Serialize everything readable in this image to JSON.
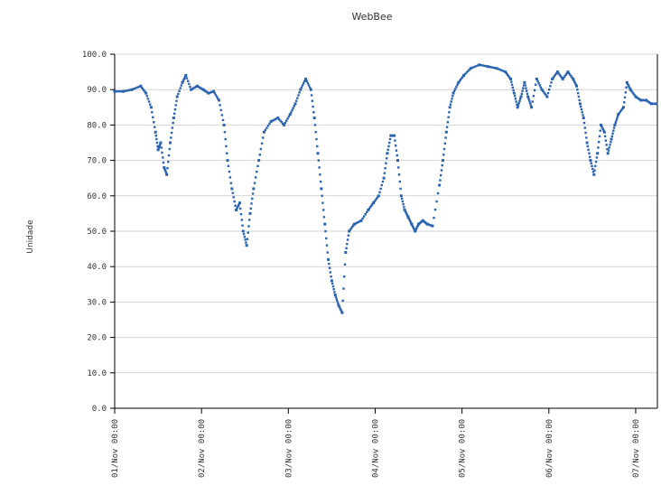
{
  "chart_data": {
    "type": "scatter",
    "title": "WebBee",
    "ylabel": "Unidade",
    "xlabel": "",
    "ylim": [
      0,
      100
    ],
    "yticks": [
      "0.0",
      "10.0",
      "20.0",
      "30.0",
      "40.0",
      "50.0",
      "60.0",
      "70.0",
      "80.0",
      "90.0",
      "100.0"
    ],
    "yticks_values": [
      0,
      10,
      20,
      30,
      40,
      50,
      60,
      70,
      80,
      90,
      100
    ],
    "xlim": [
      0,
      6.25
    ],
    "x_unit": "days from 01/Nov 00:00",
    "xticks": [
      "01/Nov 00:00",
      "02/Nov 00:00",
      "03/Nov 00:00",
      "04/Nov 00:00",
      "05/Nov 00:00",
      "06/Nov 00:00",
      "07/Nov 00:00"
    ],
    "xticks_values": [
      0,
      1,
      2,
      3,
      4,
      5,
      6
    ],
    "grid": true,
    "marker_color": "#2a63b0",
    "grid_color": "#d4d4d4",
    "series": [
      {
        "points": [
          [
            0.0,
            89.5
          ],
          [
            0.1,
            89.5
          ],
          [
            0.2,
            90.0
          ],
          [
            0.3,
            91.0
          ],
          [
            0.36,
            89.0
          ],
          [
            0.42,
            85.0
          ],
          [
            0.47,
            78.0
          ],
          [
            0.5,
            73.0
          ],
          [
            0.53,
            75.0
          ],
          [
            0.57,
            68.0
          ],
          [
            0.6,
            66.0
          ],
          [
            0.64,
            75.0
          ],
          [
            0.68,
            82.0
          ],
          [
            0.72,
            88.0
          ],
          [
            0.78,
            92.0
          ],
          [
            0.82,
            94.0
          ],
          [
            0.88,
            90.0
          ],
          [
            0.95,
            91.0
          ],
          [
            1.02,
            90.0
          ],
          [
            1.08,
            89.0
          ],
          [
            1.14,
            89.5
          ],
          [
            1.2,
            87.0
          ],
          [
            1.26,
            80.0
          ],
          [
            1.3,
            70.0
          ],
          [
            1.35,
            62.0
          ],
          [
            1.4,
            56.0
          ],
          [
            1.44,
            58.0
          ],
          [
            1.48,
            50.0
          ],
          [
            1.52,
            46.0
          ],
          [
            1.56,
            55.0
          ],
          [
            1.6,
            62.0
          ],
          [
            1.66,
            70.0
          ],
          [
            1.72,
            78.0
          ],
          [
            1.8,
            81.0
          ],
          [
            1.88,
            82.0
          ],
          [
            1.95,
            80.0
          ],
          [
            2.02,
            83.0
          ],
          [
            2.08,
            86.0
          ],
          [
            2.14,
            90.0
          ],
          [
            2.2,
            93.0
          ],
          [
            2.26,
            90.0
          ],
          [
            2.3,
            82.0
          ],
          [
            2.34,
            72.0
          ],
          [
            2.38,
            62.0
          ],
          [
            2.42,
            52.0
          ],
          [
            2.46,
            42.0
          ],
          [
            2.5,
            36.0
          ],
          [
            2.54,
            32.0
          ],
          [
            2.58,
            29.0
          ],
          [
            2.62,
            27.0
          ],
          [
            2.66,
            44.0
          ],
          [
            2.7,
            50.0
          ],
          [
            2.76,
            52.0
          ],
          [
            2.84,
            53.0
          ],
          [
            2.92,
            56.0
          ],
          [
            2.98,
            58.0
          ],
          [
            3.04,
            60.0
          ],
          [
            3.1,
            65.0
          ],
          [
            3.14,
            72.0
          ],
          [
            3.18,
            77.0
          ],
          [
            3.22,
            77.0
          ],
          [
            3.26,
            70.0
          ],
          [
            3.3,
            60.0
          ],
          [
            3.34,
            56.0
          ],
          [
            3.38,
            54.0
          ],
          [
            3.42,
            52.0
          ],
          [
            3.46,
            50.0
          ],
          [
            3.5,
            52.0
          ],
          [
            3.55,
            53.0
          ],
          [
            3.6,
            52.0
          ],
          [
            3.66,
            51.5
          ],
          [
            3.74,
            63.0
          ],
          [
            3.78,
            70.0
          ],
          [
            3.82,
            78.0
          ],
          [
            3.86,
            85.0
          ],
          [
            3.9,
            89.0
          ],
          [
            3.96,
            92.0
          ],
          [
            4.02,
            94.0
          ],
          [
            4.1,
            96.0
          ],
          [
            4.2,
            97.0
          ],
          [
            4.3,
            96.5
          ],
          [
            4.4,
            96.0
          ],
          [
            4.5,
            95.0
          ],
          [
            4.56,
            93.0
          ],
          [
            4.6,
            89.0
          ],
          [
            4.64,
            85.0
          ],
          [
            4.68,
            88.0
          ],
          [
            4.72,
            92.0
          ],
          [
            4.76,
            88.0
          ],
          [
            4.8,
            85.0
          ],
          [
            4.86,
            93.0
          ],
          [
            4.92,
            90.0
          ],
          [
            4.98,
            88.0
          ],
          [
            5.04,
            93.0
          ],
          [
            5.1,
            95.0
          ],
          [
            5.16,
            93.0
          ],
          [
            5.22,
            95.0
          ],
          [
            5.28,
            93.0
          ],
          [
            5.32,
            91.0
          ],
          [
            5.36,
            86.0
          ],
          [
            5.4,
            82.0
          ],
          [
            5.44,
            75.0
          ],
          [
            5.48,
            70.0
          ],
          [
            5.52,
            66.0
          ],
          [
            5.56,
            72.0
          ],
          [
            5.6,
            80.0
          ],
          [
            5.64,
            78.0
          ],
          [
            5.68,
            72.0
          ],
          [
            5.72,
            76.0
          ],
          [
            5.76,
            80.0
          ],
          [
            5.8,
            83.0
          ],
          [
            5.86,
            85.0
          ],
          [
            5.9,
            92.0
          ],
          [
            5.94,
            90.0
          ],
          [
            6.0,
            88.0
          ],
          [
            6.06,
            87.0
          ],
          [
            6.12,
            87.0
          ],
          [
            6.18,
            86.0
          ],
          [
            6.24,
            86.0
          ]
        ]
      }
    ]
  }
}
